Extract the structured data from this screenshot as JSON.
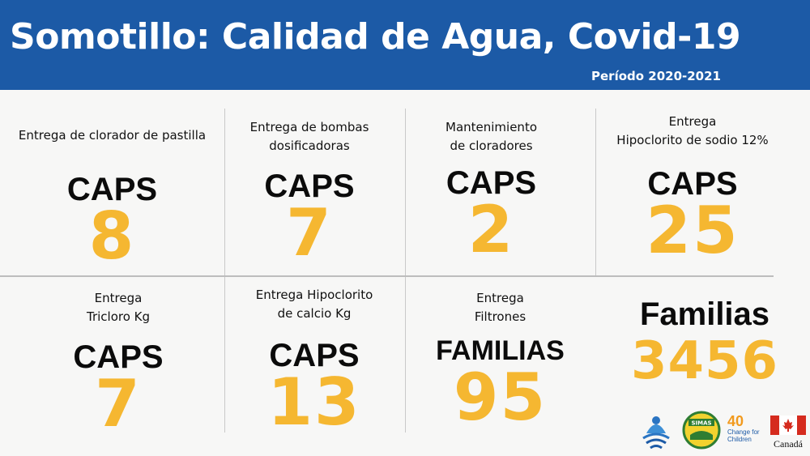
{
  "header": {
    "title": "Somotillo: Calidad de Agua, Covid-19",
    "period": "Período 2020-2021"
  },
  "cards": [
    {
      "label": "Entrega de clorador de pastilla",
      "unit": "CAPS",
      "value": "8"
    },
    {
      "label": "Entrega de bombas\ndosificadoras",
      "unit": "CAPS",
      "value": "7"
    },
    {
      "label": "Mantenimiento\nde cloradores",
      "unit": "CAPS",
      "value": "2"
    },
    {
      "label": "Entrega\nHipoclorito de sodio 12%",
      "unit": "CAPS",
      "value": "25"
    },
    {
      "label": "Entrega\nTricloro Kg",
      "unit": "CAPS",
      "value": "7"
    },
    {
      "label": "Entrega Hipoclorito\nde calcio Kg",
      "unit": "CAPS",
      "value": "13"
    },
    {
      "label": "Entrega\nFiltrones",
      "unit": "FAMILIAS",
      "value": "95"
    },
    {
      "label": "",
      "unit": "Familias",
      "value": "3456"
    }
  ],
  "logos": {
    "simas": "SIMAS",
    "change_for_children": "Change for Children",
    "change_40": "40",
    "canada": "Canadá"
  },
  "colors": {
    "header_bg": "#1c5aa6",
    "value": "#f5b731",
    "background": "#f7f7f6"
  }
}
